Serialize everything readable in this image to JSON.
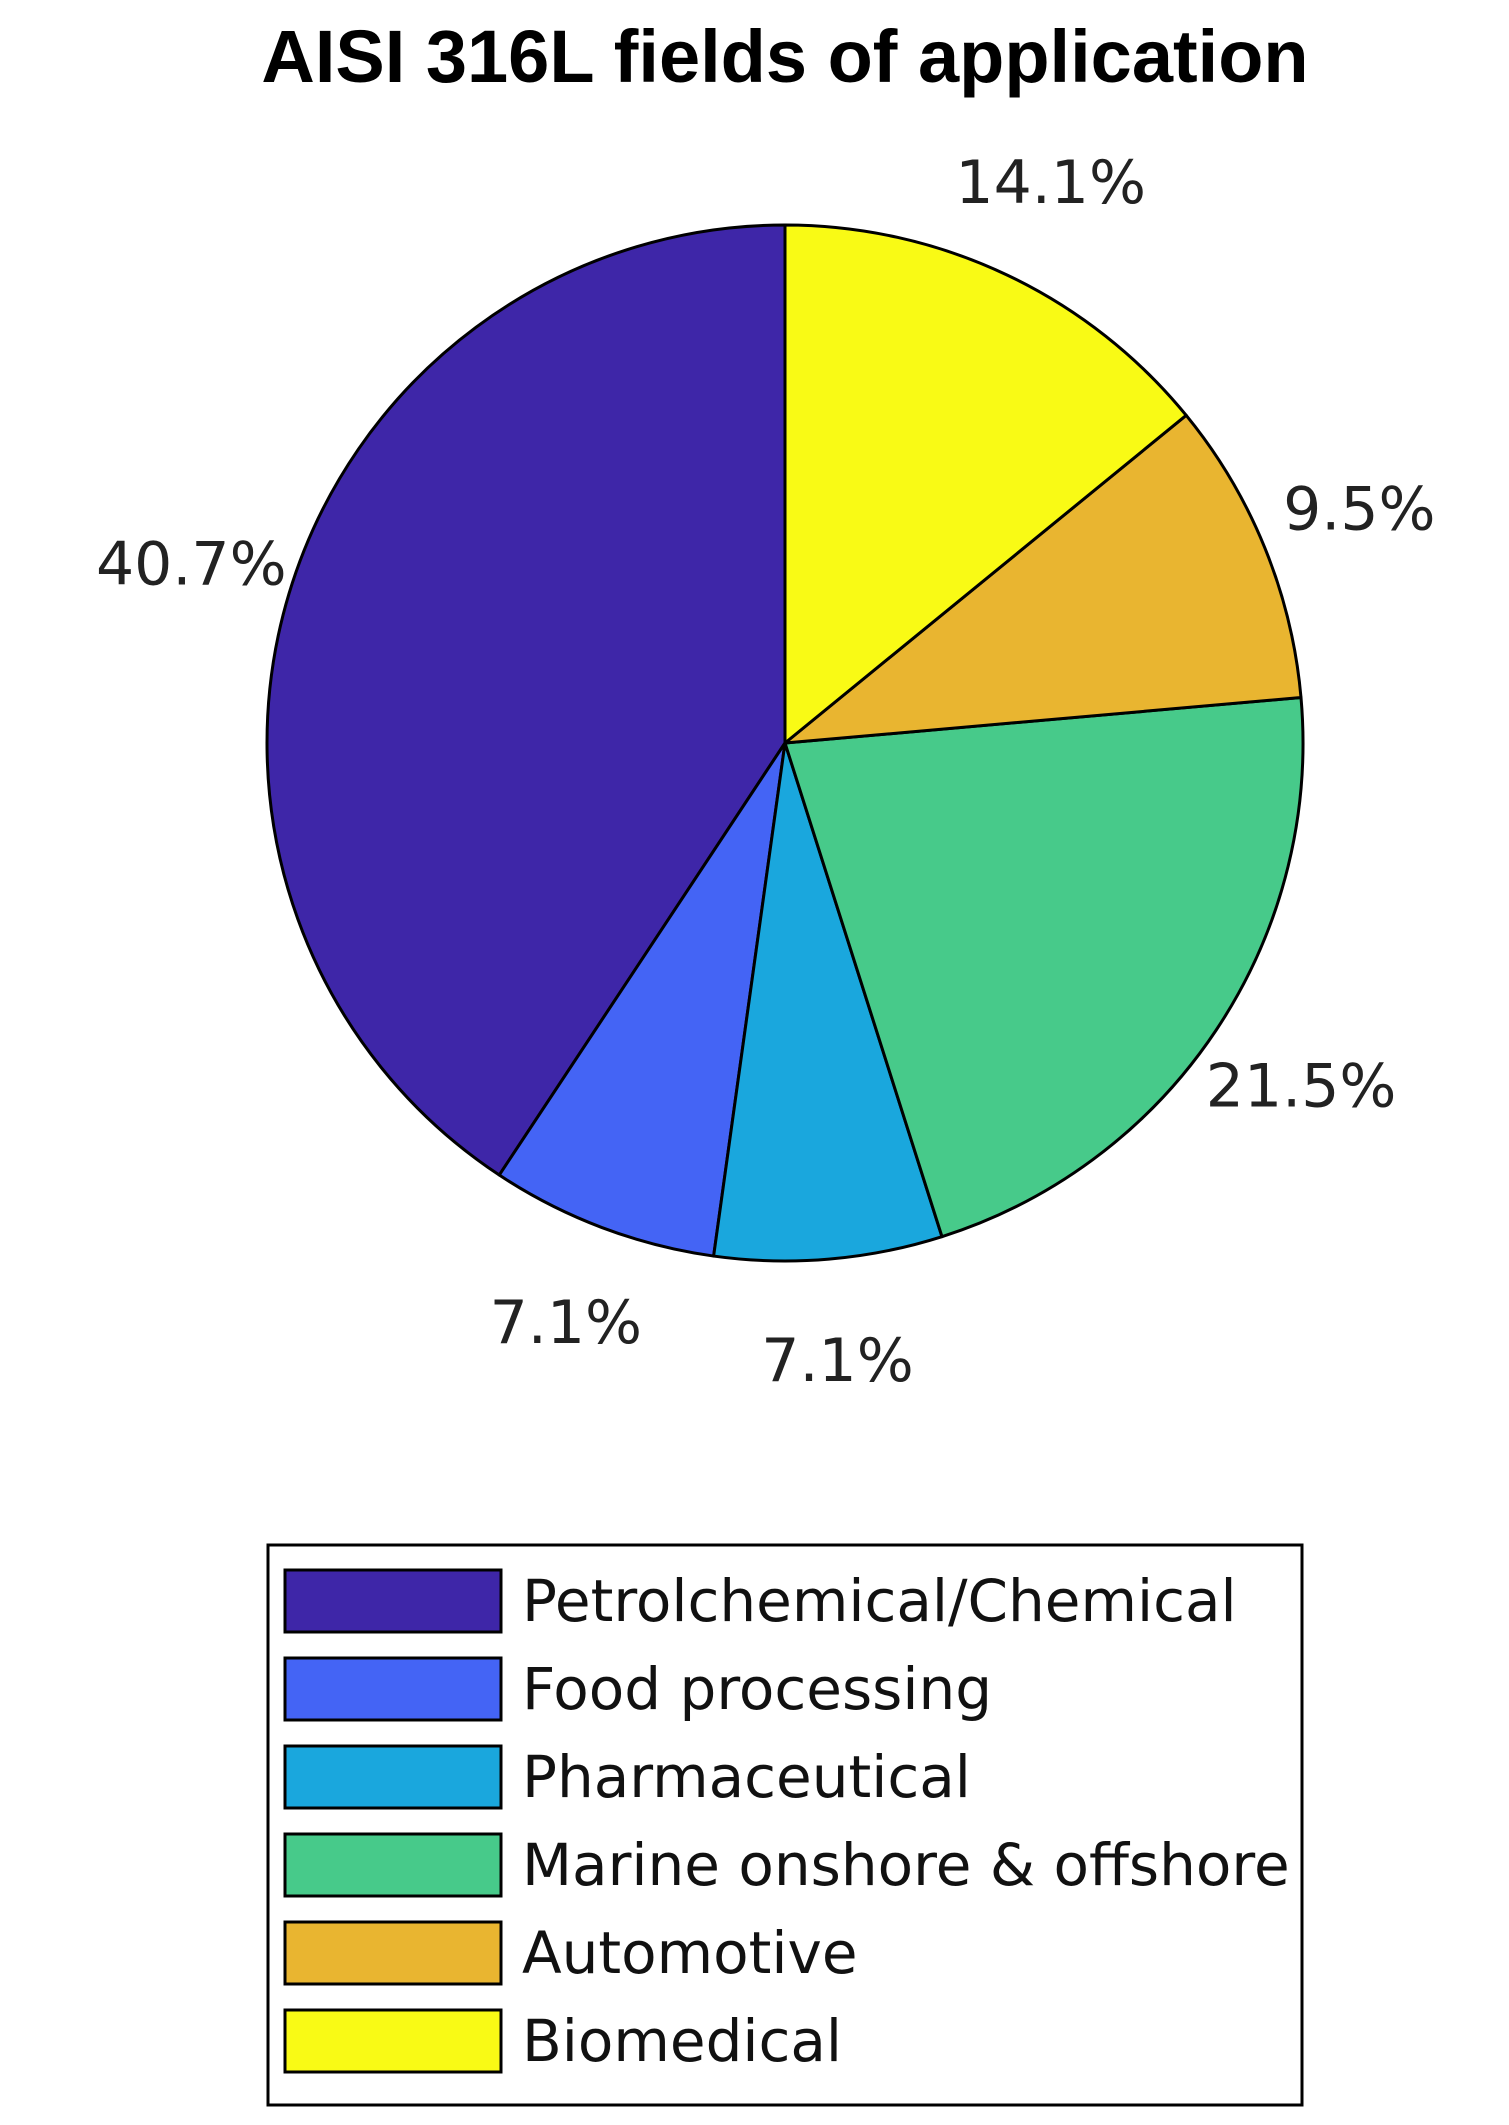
{
  "chart_data": {
    "type": "pie",
    "title": "AISI 316L fields of application",
    "slices": [
      {
        "name": "Petrolchemical/Chemical",
        "value": 40.7,
        "label": "40.7%",
        "color": "#3e26a8"
      },
      {
        "name": "Food processing",
        "value": 7.1,
        "label": "7.1%",
        "color": "#4464f5"
      },
      {
        "name": "Pharmaceutical",
        "value": 7.1,
        "label": "7.1%",
        "color": "#1aa7dd"
      },
      {
        "name": "Marine onshore & offshore",
        "value": 21.5,
        "label": "21.5%",
        "color": "#47ca8a"
      },
      {
        "name": "Automotive",
        "value": 9.5,
        "label": "9.5%",
        "color": "#e9b530"
      },
      {
        "name": "Biomedical",
        "value": 14.1,
        "label": "14.1%",
        "color": "#f9fa15"
      }
    ],
    "direction": "counterclockwise",
    "start": "top",
    "legend_position": "bottom",
    "edge_color": "#000000"
  }
}
